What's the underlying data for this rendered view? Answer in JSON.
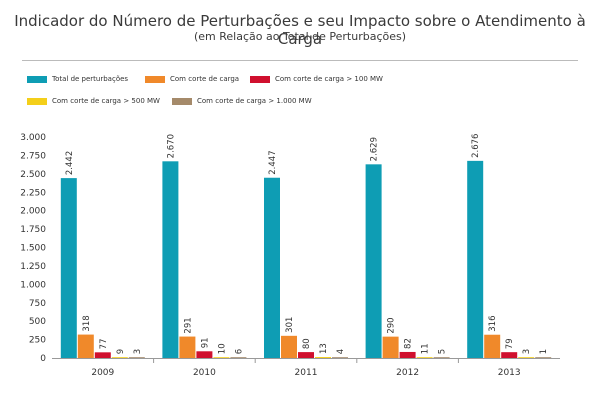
{
  "chart_data": {
    "type": "bar",
    "title": "Indicador do Número de Perturbações e seu Impacto sobre o Atendimento à Carga",
    "subtitle": "(em Relação ao Total de Perturbações)",
    "categories": [
      "2009",
      "2010",
      "2011",
      "2012",
      "2013"
    ],
    "series": [
      {
        "name": "Total de perturbações",
        "color": "#0e9db4",
        "values": [
          2442,
          2670,
          2447,
          2629,
          2676
        ],
        "labels": [
          "2.442",
          "2.670",
          "2.447",
          "2.629",
          "2.676"
        ]
      },
      {
        "name": "Com corte de carga",
        "color": "#f0892a",
        "values": [
          318,
          291,
          301,
          290,
          316
        ],
        "labels": [
          "318",
          "291",
          "301",
          "290",
          "316"
        ]
      },
      {
        "name": "Com corte de carga > 100 MW",
        "color": "#d0102e",
        "values": [
          77,
          91,
          80,
          82,
          79
        ],
        "labels": [
          "77",
          "91",
          "80",
          "82",
          "79"
        ]
      },
      {
        "name": "Com corte de carga > 500 MW",
        "color": "#f4cf1a",
        "values": [
          9,
          10,
          13,
          11,
          3
        ],
        "labels": [
          "9",
          "10",
          "13",
          "11",
          "3"
        ]
      },
      {
        "name": "Com corte de carga > 1.000 MW",
        "color": "#a58a6a",
        "values": [
          3,
          6,
          4,
          5,
          1
        ],
        "labels": [
          "3",
          "6",
          "4",
          "5",
          "1"
        ]
      }
    ],
    "ylim": [
      0,
      3000
    ],
    "yticks": [
      0,
      250,
      500,
      750,
      1000,
      1250,
      1500,
      1750,
      2000,
      2250,
      2500,
      2750,
      3000
    ],
    "ytick_labels": [
      "0",
      "250",
      "500",
      "750",
      "1.000",
      "1.250",
      "1.500",
      "1.750",
      "2.000",
      "2.250",
      "2.500",
      "2.750",
      "3.000"
    ],
    "xlabel": "",
    "ylabel": "",
    "grid": false,
    "legend_position": "top"
  }
}
